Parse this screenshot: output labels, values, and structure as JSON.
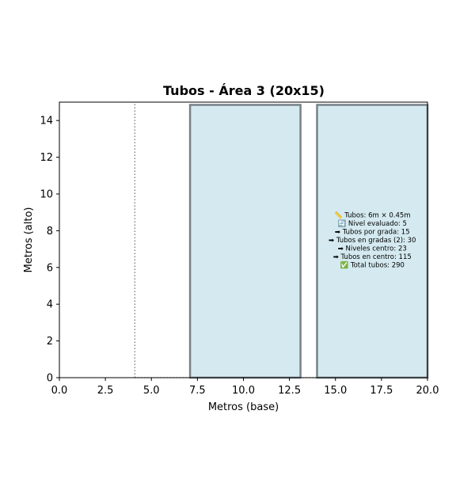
{
  "chart_data": {
    "type": "bar",
    "title": "Tubos - Área 3 (20x15)",
    "xlabel": "Metros (base)",
    "ylabel": "Metros (alto)",
    "xlim": [
      0,
      20
    ],
    "ylim": [
      0,
      15
    ],
    "grid": false,
    "x_ticks": [
      "0.0",
      "2.5",
      "5.0",
      "7.5",
      "10.0",
      "12.5",
      "15.0",
      "17.5",
      "20.0"
    ],
    "x_tick_values": [
      0,
      2.5,
      5,
      7.5,
      10,
      12.5,
      15,
      17.5,
      20
    ],
    "y_ticks": [
      "0",
      "2",
      "4",
      "6",
      "8",
      "10",
      "12",
      "14"
    ],
    "y_tick_values": [
      0,
      2,
      4,
      6,
      8,
      10,
      12,
      14
    ],
    "rectangles": [
      {
        "x0": 7.1,
        "x1": 13.1,
        "y0": 0,
        "y1": 14.85
      },
      {
        "x0": 14.0,
        "x1": 20.0,
        "y0": 0,
        "y1": 14.85
      }
    ],
    "fill_color": "#d4eaf0",
    "edge_color": "#778188",
    "dotted_lines": [
      {
        "x0": 4.1,
        "y0": 0,
        "x1": 4.1,
        "y1": 15
      },
      {
        "x0": 4.1,
        "y0": 0,
        "x1": 20,
        "y1": 0
      },
      {
        "x0": 20,
        "y0": 0,
        "x1": 20,
        "y1": 15
      }
    ],
    "annotation": {
      "x": 17.0,
      "y": 7.5,
      "lines": [
        "📏 Tubos: 6m × 0.45m",
        "🔄 Nivel evaluado: 5",
        "➡ Tubos por grada: 15",
        "➡ Tubos en gradas (2): 30",
        "➡ Niveles centro: 23",
        "➡ Tubos en centro: 115",
        "✅ Total tubos: 290"
      ]
    }
  }
}
